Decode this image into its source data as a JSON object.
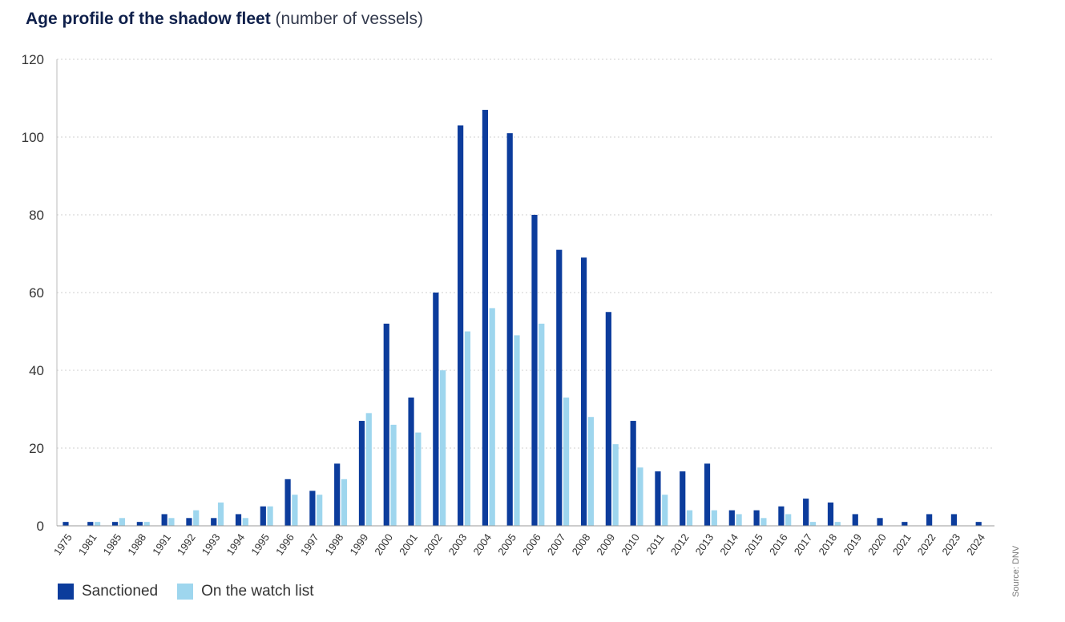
{
  "title": {
    "bold": "Age profile of the shadow fleet",
    "sub": "(number of vessels)"
  },
  "source": "Source: DNV",
  "legend": [
    {
      "label": "Sanctioned",
      "color": "#0c3c9c"
    },
    {
      "label": "On the watch list",
      "color": "#9ed6ee"
    }
  ],
  "chart_data": {
    "type": "bar",
    "categories": [
      "1975",
      "1981",
      "1985",
      "1988",
      "1991",
      "1992",
      "1993",
      "1994",
      "1995",
      "1996",
      "1997",
      "1998",
      "1999",
      "2000",
      "2001",
      "2002",
      "2003",
      "2004",
      "2005",
      "2006",
      "2007",
      "2008",
      "2009",
      "2010",
      "2011",
      "2012",
      "2013",
      "2014",
      "2015",
      "2016",
      "2017",
      "2018",
      "2019",
      "2020",
      "2021",
      "2022",
      "2023",
      "2024"
    ],
    "series": [
      {
        "name": "Sanctioned",
        "color": "#0c3c9c",
        "values": [
          1,
          1,
          1,
          1,
          3,
          2,
          2,
          3,
          5,
          12,
          9,
          16,
          27,
          52,
          33,
          60,
          103,
          107,
          101,
          80,
          71,
          69,
          55,
          27,
          14,
          14,
          16,
          4,
          4,
          5,
          7,
          6,
          3,
          2,
          1,
          3,
          3,
          1
        ]
      },
      {
        "name": "On the watch list",
        "color": "#9ed6ee",
        "values": [
          0,
          1,
          2,
          1,
          2,
          4,
          6,
          2,
          5,
          8,
          8,
          12,
          29,
          26,
          24,
          40,
          50,
          56,
          49,
          52,
          33,
          28,
          21,
          15,
          8,
          4,
          4,
          3,
          2,
          3,
          1,
          1,
          0,
          0,
          0,
          0,
          0,
          0
        ]
      }
    ],
    "y_ticks": [
      0,
      20,
      40,
      60,
      80,
      100,
      120
    ],
    "ylim": [
      0,
      120
    ],
    "grid": true,
    "legend_position": "bottom-left"
  }
}
